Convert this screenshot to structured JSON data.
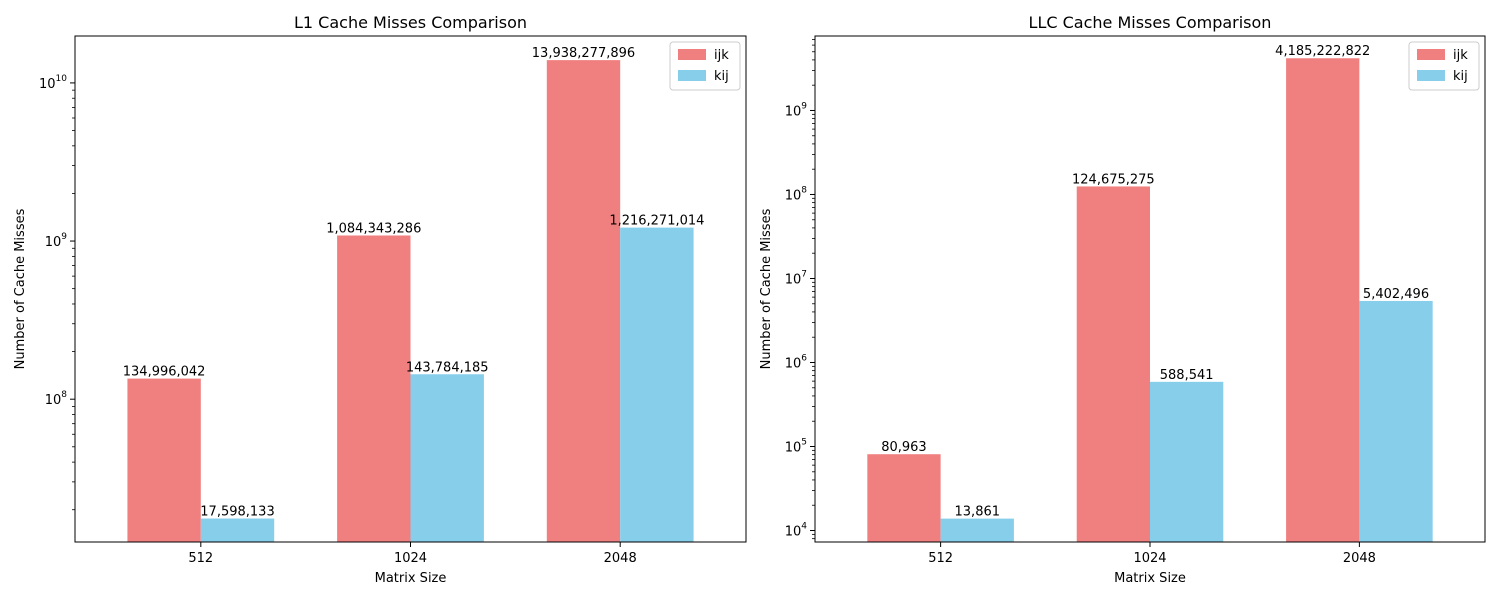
{
  "chart_data": [
    {
      "type": "bar",
      "title": "L1 Cache Misses Comparison",
      "xlabel": "Matrix Size",
      "ylabel": "Number of Cache Misses",
      "yscale": "log",
      "ylim": [
        12500000,
        19800000000
      ],
      "yticks": [
        {
          "value": 100000000,
          "base": "10",
          "exp": "8"
        },
        {
          "value": 1000000000,
          "base": "10",
          "exp": "9"
        },
        {
          "value": 10000000000,
          "base": "10",
          "exp": "10"
        }
      ],
      "categories": [
        "512",
        "1024",
        "2048"
      ],
      "series": [
        {
          "name": "ijk",
          "color": "#f08080",
          "values": [
            134996042,
            1084343286,
            13938277896
          ],
          "labels": [
            "134,996,042",
            "1,084,343,286",
            "13,938,277,896"
          ]
        },
        {
          "name": "kij",
          "color": "#87ceeb",
          "values": [
            17598133,
            143784185,
            1216271014
          ],
          "labels": [
            "17,598,133",
            "143,784,185",
            "1,216,271,014"
          ]
        }
      ],
      "legend": "top-right",
      "grid": false
    },
    {
      "type": "bar",
      "title": "LLC Cache Misses Comparison",
      "xlabel": "Matrix Size",
      "ylabel": "Number of Cache Misses",
      "yscale": "log",
      "ylim": [
        7300,
        7700000000
      ],
      "yticks": [
        {
          "value": 10000,
          "base": "10",
          "exp": "4"
        },
        {
          "value": 100000,
          "base": "10",
          "exp": "5"
        },
        {
          "value": 1000000,
          "base": "10",
          "exp": "6"
        },
        {
          "value": 10000000,
          "base": "10",
          "exp": "7"
        },
        {
          "value": 100000000,
          "base": "10",
          "exp": "8"
        },
        {
          "value": 1000000000,
          "base": "10",
          "exp": "9"
        }
      ],
      "categories": [
        "512",
        "1024",
        "2048"
      ],
      "series": [
        {
          "name": "ijk",
          "color": "#f08080",
          "values": [
            80963,
            124675275,
            4185222822
          ],
          "labels": [
            "80,963",
            "124,675,275",
            "4,185,222,822"
          ]
        },
        {
          "name": "kij",
          "color": "#87ceeb",
          "values": [
            13861,
            588541,
            5402496
          ],
          "labels": [
            "13,861",
            "588,541",
            "5,402,496"
          ]
        }
      ],
      "legend": "top-right",
      "grid": false
    }
  ]
}
